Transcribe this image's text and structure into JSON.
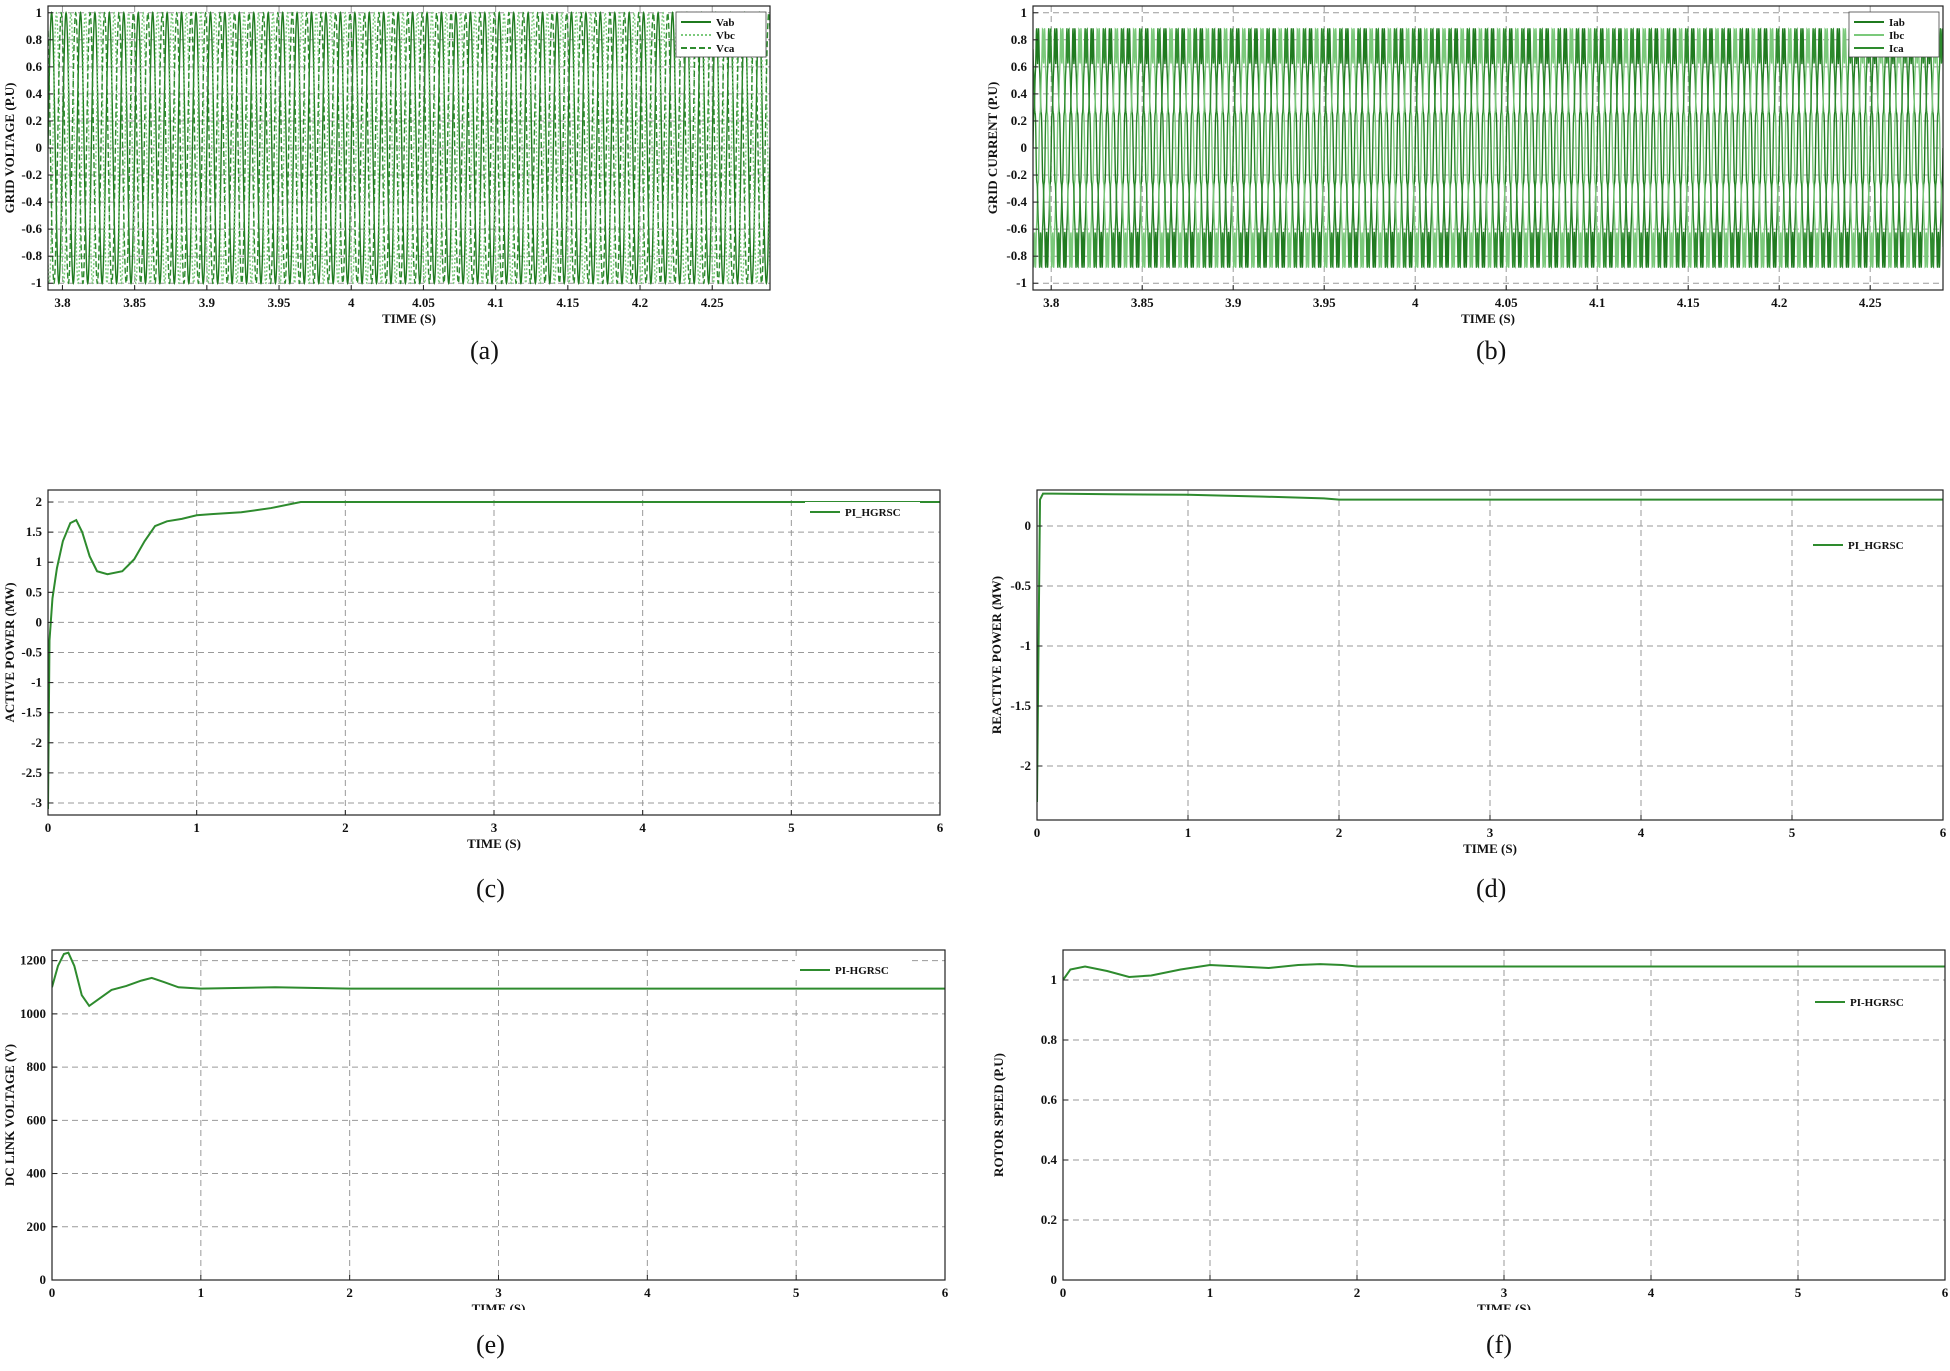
{
  "colors": {
    "dark_green": "#1f7a1f",
    "mid_green": "#2e8b2e",
    "light_green": "#7bc97b",
    "grid": "#9a9a9a"
  },
  "captions": [
    "(a)",
    "(b)",
    "(c)",
    "(d)",
    "(e)",
    "(f)"
  ],
  "chart_data": [
    {
      "id": "a",
      "type": "line",
      "ylabel": "GRID VOLTAGE (P.U)",
      "xlabel": "TIME (S)",
      "xlim": [
        3.79,
        4.29
      ],
      "ylim": [
        -1.05,
        1.05
      ],
      "xticks": [
        3.8,
        3.85,
        3.9,
        3.95,
        4,
        4.05,
        4.1,
        4.15,
        4.2,
        4.25
      ],
      "xtick_labels": [
        "3.8",
        "3.85",
        "3.9",
        "3.95",
        "4",
        "4.05",
        "4.1",
        "4.15",
        "4.2",
        "4.25"
      ],
      "yticks": [
        -1,
        -0.8,
        -0.6,
        -0.4,
        -0.2,
        0,
        0.2,
        0.4,
        0.6,
        0.8,
        1
      ],
      "ytick_labels": [
        "-1",
        "-0.8",
        "-0.6",
        "-0.4",
        "-0.2",
        "0",
        "0.2",
        "0.4",
        "0.6",
        "0.8",
        "1"
      ],
      "grid": true,
      "legend_position": "top-right",
      "waveform": {
        "kind": "three-phase-sine",
        "frequency_hz": 100,
        "amplitude": 1
      },
      "series": [
        {
          "name": "Vab",
          "phase_deg": 0,
          "color": "#1f7a1f",
          "style": "solid"
        },
        {
          "name": "Vbc",
          "phase_deg": -120,
          "color": "#7bc97b",
          "style": "dotted"
        },
        {
          "name": "Vca",
          "phase_deg": 120,
          "color": "#2e8b2e",
          "style": "dashed"
        }
      ]
    },
    {
      "id": "b",
      "type": "line",
      "ylabel": "GRID CURRENT (P.U)",
      "xlabel": "TIME (S)",
      "xlim": [
        3.79,
        4.29
      ],
      "ylim": [
        -1.05,
        1.05
      ],
      "xticks": [
        3.8,
        3.85,
        3.9,
        3.95,
        4,
        4.05,
        4.1,
        4.15,
        4.2,
        4.25
      ],
      "xtick_labels": [
        "3.8",
        "3.85",
        "3.9",
        "3.95",
        "4",
        "4.05",
        "4.1",
        "4.15",
        "4.2",
        "4.25"
      ],
      "yticks": [
        -1,
        -0.8,
        -0.6,
        -0.4,
        -0.2,
        0,
        0.2,
        0.4,
        0.6,
        0.8,
        1
      ],
      "ytick_labels": [
        "-1",
        "-0.8",
        "-0.6",
        "-0.4",
        "-0.2",
        "0",
        "0.2",
        "0.4",
        "0.6",
        "0.8",
        "1"
      ],
      "grid": true,
      "legend_position": "top-right",
      "waveform": {
        "kind": "three-phase-sine-distorted",
        "frequency_hz": 100,
        "amplitude": 0.8,
        "ripple": 0.12
      },
      "series": [
        {
          "name": "Iab",
          "phase_deg": 0,
          "color": "#1f7a1f",
          "style": "solid"
        },
        {
          "name": "Ibc",
          "phase_deg": -120,
          "color": "#7bc97b",
          "style": "solid"
        },
        {
          "name": "Ica",
          "phase_deg": 120,
          "color": "#2e8b2e",
          "style": "solid"
        }
      ]
    },
    {
      "id": "c",
      "type": "line",
      "ylabel": "ACTIVE POWER (MW)",
      "xlabel": "TIME (S)",
      "xlim": [
        0,
        6
      ],
      "ylim": [
        -3.2,
        2.2
      ],
      "xticks": [
        0,
        1,
        2,
        3,
        4,
        5,
        6
      ],
      "xtick_labels": [
        "0",
        "1",
        "2",
        "3",
        "4",
        "5",
        "6"
      ],
      "yticks": [
        -3,
        -2.5,
        -2,
        -1.5,
        -1,
        -0.5,
        0,
        0.5,
        1,
        1.5,
        2
      ],
      "ytick_labels": [
        "-3",
        "-2.5",
        "-2",
        "-1.5",
        "-1",
        "-0.5",
        "0",
        "0.5",
        "1",
        "1.5",
        "2"
      ],
      "grid": true,
      "legend_position": "top-right",
      "series": [
        {
          "name": "PI_HGRSC",
          "color": "#2e8b2e",
          "x": [
            0,
            0.01,
            0.03,
            0.06,
            0.1,
            0.15,
            0.19,
            0.23,
            0.28,
            0.33,
            0.4,
            0.5,
            0.58,
            0.65,
            0.72,
            0.8,
            0.9,
            1.0,
            1.1,
            1.3,
            1.5,
            1.7,
            1.9,
            2.0,
            2.5,
            3,
            4,
            5,
            6
          ],
          "y": [
            -3.1,
            -0.3,
            0.4,
            0.9,
            1.35,
            1.65,
            1.7,
            1.5,
            1.1,
            0.85,
            0.8,
            0.85,
            1.05,
            1.35,
            1.6,
            1.68,
            1.72,
            1.78,
            1.8,
            1.83,
            1.9,
            2.0,
            2.0,
            2.0,
            2.0,
            2.0,
            2.0,
            2.0,
            2.0
          ]
        }
      ]
    },
    {
      "id": "d",
      "type": "line",
      "ylabel": "REACTIVE POWER (MW)",
      "xlabel": "TIME (S)",
      "xlim": [
        0,
        6
      ],
      "ylim": [
        -2.45,
        0.3
      ],
      "xticks": [
        0,
        1,
        2,
        3,
        4,
        5,
        6
      ],
      "xtick_labels": [
        "0",
        "1",
        "2",
        "3",
        "4",
        "5",
        "6"
      ],
      "yticks": [
        -2,
        -1.5,
        -1,
        -0.5,
        0
      ],
      "ytick_labels": [
        "-2",
        "-1.5",
        "-1",
        "-0.5",
        "0"
      ],
      "grid": true,
      "legend_position": "top-right",
      "series": [
        {
          "name": "PI_HGRSC",
          "color": "#2e8b2e",
          "x": [
            0,
            0.01,
            0.02,
            0.04,
            0.1,
            0.5,
            1.0,
            1.5,
            1.9,
            2.0,
            3,
            4,
            5,
            6
          ],
          "y": [
            -2.3,
            -1.0,
            0.22,
            0.27,
            0.27,
            0.265,
            0.26,
            0.245,
            0.23,
            0.22,
            0.22,
            0.22,
            0.22,
            0.22
          ]
        }
      ]
    },
    {
      "id": "e",
      "type": "line",
      "ylabel": "DC LINK VOLTAGE (V)",
      "xlabel": "TIME (S)",
      "xlim": [
        0,
        6
      ],
      "ylim": [
        0,
        1240
      ],
      "xticks": [
        0,
        1,
        2,
        3,
        4,
        5,
        6
      ],
      "xtick_labels": [
        "0",
        "1",
        "2",
        "3",
        "4",
        "5",
        "6"
      ],
      "yticks": [
        0,
        200,
        400,
        600,
        800,
        1000,
        1200
      ],
      "ytick_labels": [
        "0",
        "200",
        "400",
        "600",
        "800",
        "1000",
        "1200"
      ],
      "grid": true,
      "legend_position": "top-right",
      "series": [
        {
          "name": "PI-HGRSC",
          "color": "#2e8b2e",
          "x": [
            0,
            0.04,
            0.08,
            0.11,
            0.15,
            0.2,
            0.25,
            0.3,
            0.4,
            0.5,
            0.6,
            0.67,
            0.75,
            0.85,
            1.0,
            1.5,
            2,
            3,
            4,
            5,
            6
          ],
          "y": [
            1100,
            1180,
            1225,
            1230,
            1180,
            1070,
            1030,
            1050,
            1090,
            1105,
            1125,
            1135,
            1120,
            1100,
            1095,
            1100,
            1095,
            1095,
            1095,
            1095,
            1095
          ]
        }
      ]
    },
    {
      "id": "f",
      "type": "line",
      "ylabel": "ROTOR SPEED (P.U)",
      "xlabel": "TIME (S)",
      "xlim": [
        0,
        6
      ],
      "ylim": [
        0,
        1.1
      ],
      "xticks": [
        0,
        1,
        2,
        3,
        4,
        5,
        6
      ],
      "xtick_labels": [
        "0",
        "1",
        "2",
        "3",
        "4",
        "5",
        "6"
      ],
      "yticks": [
        0,
        0.2,
        0.4,
        0.6,
        0.8,
        1
      ],
      "ytick_labels": [
        "0",
        "0.2",
        "0.4",
        "0.6",
        "0.8",
        "1"
      ],
      "grid": true,
      "legend_position": "top-right",
      "series": [
        {
          "name": "PI-HGRSC",
          "color": "#2e8b2e",
          "x": [
            0,
            0.05,
            0.15,
            0.3,
            0.45,
            0.6,
            0.8,
            1.0,
            1.2,
            1.4,
            1.6,
            1.75,
            1.9,
            2.0,
            3,
            4,
            5,
            6
          ],
          "y": [
            1.0,
            1.035,
            1.045,
            1.03,
            1.01,
            1.015,
            1.035,
            1.05,
            1.045,
            1.04,
            1.05,
            1.053,
            1.05,
            1.045,
            1.045,
            1.045,
            1.045,
            1.045
          ]
        }
      ]
    }
  ]
}
